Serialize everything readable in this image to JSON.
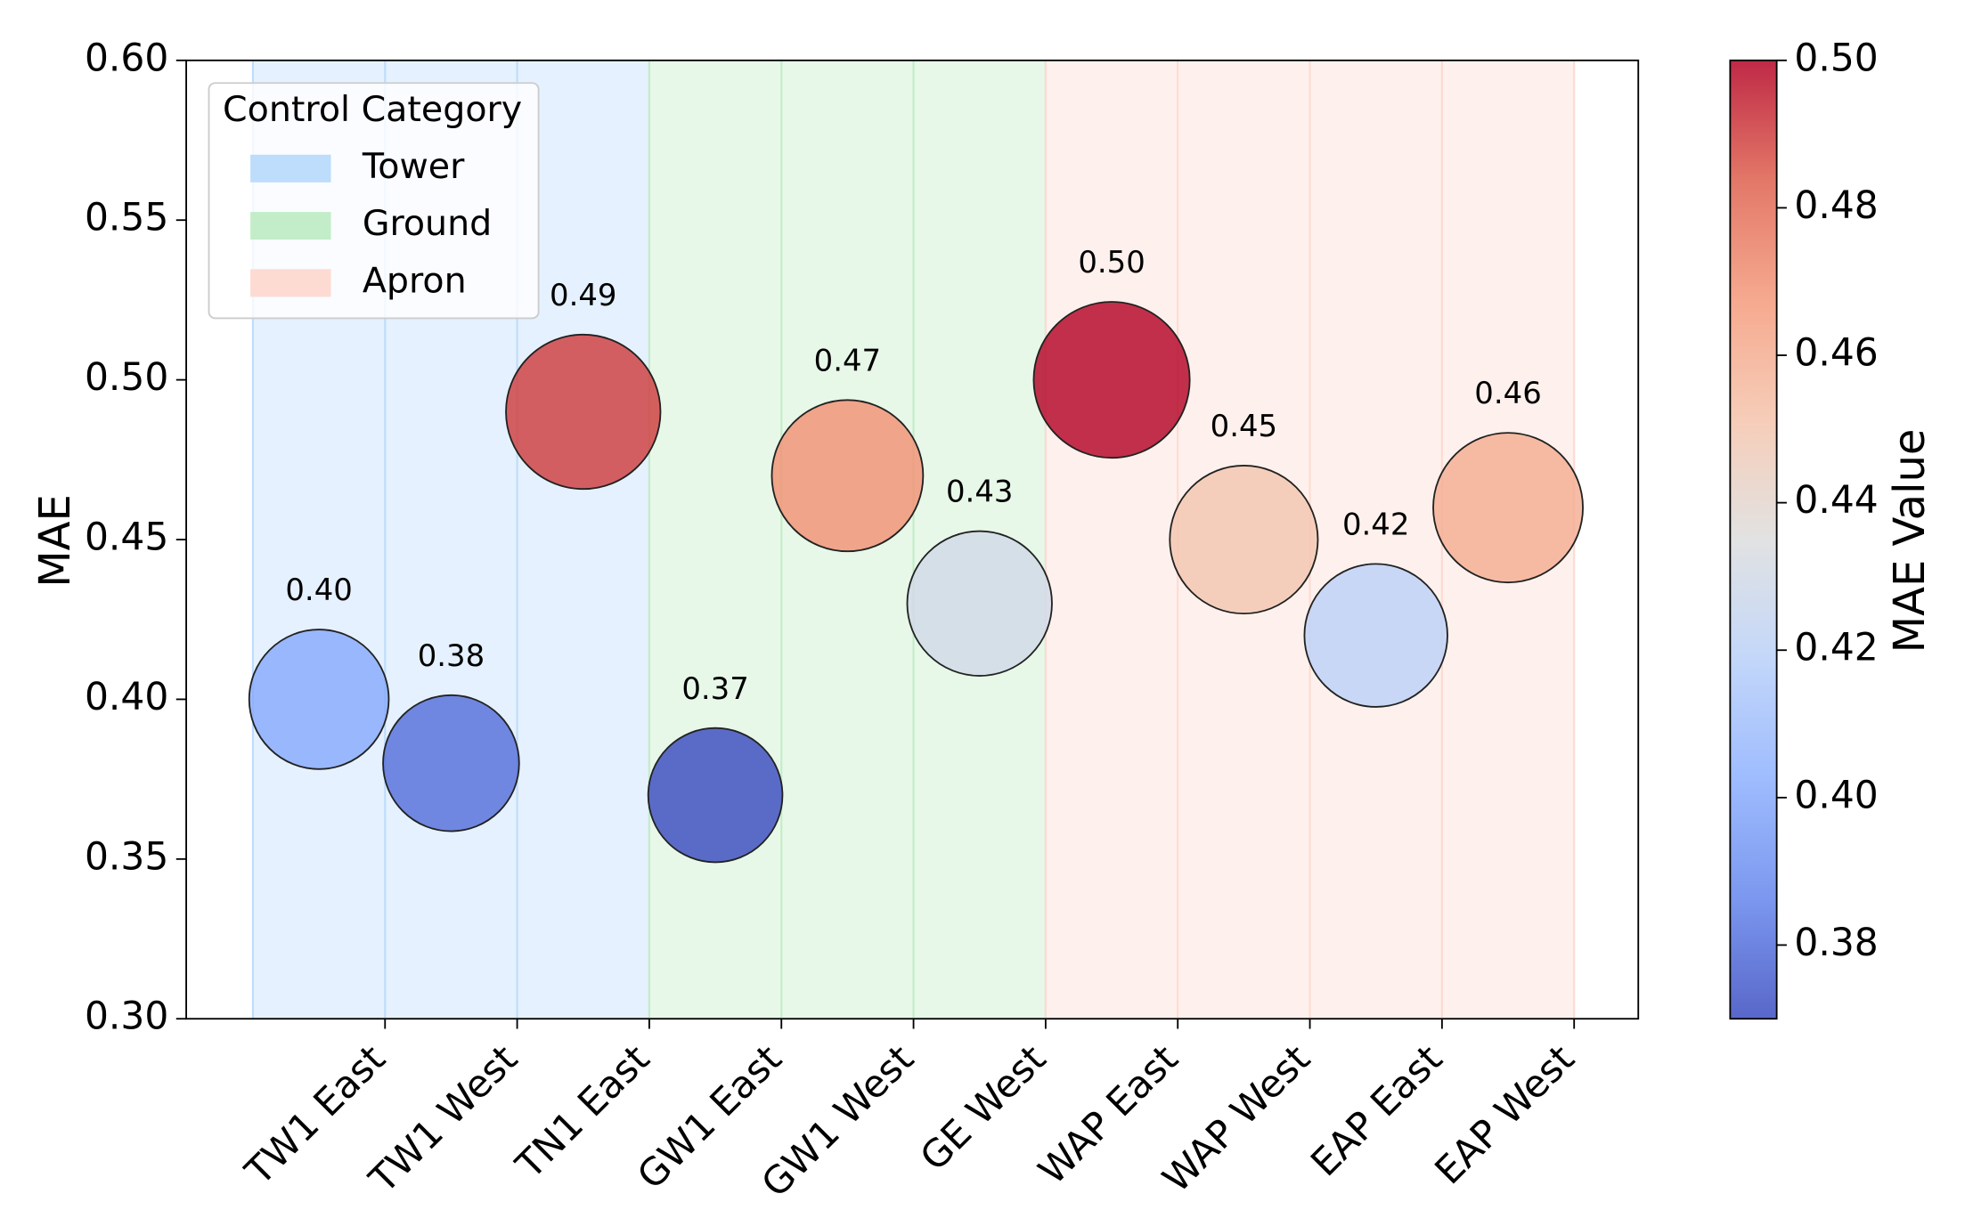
{
  "chart_data": {
    "type": "bubble",
    "y_label": "MAE",
    "categories": [
      "TW1 East",
      "TW1 West",
      "TN1 East",
      "GW1 East",
      "GW1 West",
      "GE West",
      "WAP East",
      "WAP West",
      "EAP East",
      "EAP West"
    ],
    "values": [
      0.4,
      0.38,
      0.49,
      0.37,
      0.47,
      0.43,
      0.5,
      0.45,
      0.42,
      0.46
    ],
    "value_labels": [
      "0.40",
      "0.38",
      "0.49",
      "0.37",
      "0.47",
      "0.43",
      "0.50",
      "0.45",
      "0.42",
      "0.46"
    ],
    "ylim": [
      0.3,
      0.6
    ],
    "yticks": [
      {
        "value": 0.3,
        "label": "0.30"
      },
      {
        "value": 0.35,
        "label": "0.35"
      },
      {
        "value": 0.4,
        "label": "0.40"
      },
      {
        "value": 0.45,
        "label": "0.45"
      },
      {
        "value": 0.5,
        "label": "0.50"
      },
      {
        "value": 0.55,
        "label": "0.55"
      },
      {
        "value": 0.6,
        "label": "0.60"
      }
    ],
    "grid": false,
    "legend": {
      "title": "Control Category",
      "corner": "upper left",
      "groups": [
        {
          "name": "Tower",
          "color": "#bedcfc",
          "count": 3
        },
        {
          "name": "Ground",
          "color": "#c3edc8",
          "count": 3
        },
        {
          "name": "Apron",
          "color": "#fddbd2",
          "count": 4
        }
      ]
    },
    "colorbar": {
      "label": "MAE Value",
      "lim": [
        0.37,
        0.5
      ],
      "ticks": [
        {
          "value": 0.38,
          "label": "0.38"
        },
        {
          "value": 0.4,
          "label": "0.40"
        },
        {
          "value": 0.42,
          "label": "0.42"
        },
        {
          "value": 0.44,
          "label": "0.44"
        },
        {
          "value": 0.46,
          "label": "0.46"
        },
        {
          "value": 0.48,
          "label": "0.48"
        },
        {
          "value": 0.5,
          "label": "0.50"
        }
      ],
      "colormap": [
        "#3b4cc0",
        "#6485ec",
        "#8db0fe",
        "#b9d0f9",
        "#dcdddd",
        "#f5c4ac",
        "#f49a7b",
        "#de604d",
        "#b40426"
      ]
    }
  }
}
